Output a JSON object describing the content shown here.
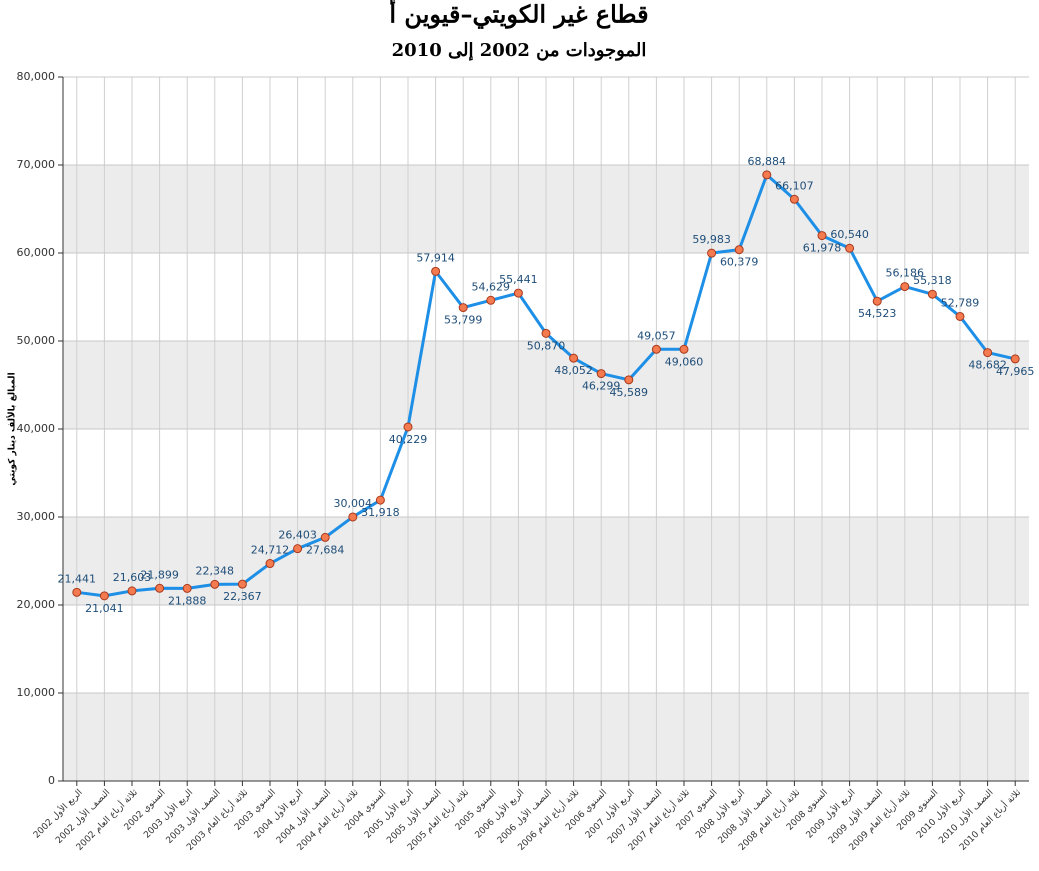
{
  "chart_data": {
    "type": "line",
    "title": "قطاع غير الكويتي–قيوين أ",
    "subtitle": "الموجودات من 2002 إلى 2010",
    "y_label": "المبالغ بالألف دينار كويتي",
    "categories": [
      "الربع الأول 2002",
      "النصف الأول 2002",
      "ثلاثة أرباع العام 2002",
      "السنوي 2002",
      "الربع الأول 2003",
      "النصف الأول 2003",
      "ثلاثة أرباع العام 2003",
      "السنوي 2003",
      "الربع الأول 2004",
      "النصف الأول 2004",
      "ثلاثة أرباع العام 2004",
      "السنوي 2004",
      "الربع الأول 2005",
      "النصف الأول 2005",
      "ثلاثة أرباع العام 2005",
      "السنوي 2005",
      "الربع الأول 2006",
      "النصف الأول 2006",
      "ثلاثة أرباع العام 2006",
      "السنوي 2006",
      "الربع الأول 2007",
      "النصف الأول 2007",
      "ثلاثة أرباع العام 2007",
      "السنوي 2007",
      "الربع الأول 2008",
      "النصف الأول 2008",
      "ثلاثة أرباع العام 2008",
      "السنوي 2008",
      "الربع الأول 2009",
      "النصف الأول 2009",
      "ثلاثة أرباع العام 2009",
      "السنوي 2009",
      "الربع الأول 2010",
      "النصف الأول 2010",
      "ثلاثة أرباع العام 2010"
    ],
    "series": [
      {
        "color": "#1e8fe6",
        "marker_color": "#f47a50",
        "values": [
          21441,
          21041,
          21603,
          21899,
          21888,
          22348,
          22367,
          24712,
          26403,
          27684,
          30004,
          31918,
          40229,
          57914,
          53799,
          54629,
          55441,
          50870,
          48052,
          46299,
          45589,
          49057,
          49060,
          59983,
          60379,
          68884,
          66107,
          61978,
          60540,
          54523,
          56186,
          55318,
          52789,
          48682,
          47965
        ],
        "value_labels": [
          "21,441",
          "21,041",
          "21,603",
          "21,899",
          "21,888",
          "22,348",
          "22,367",
          "24,712",
          "26,403",
          "27,684",
          "30,004",
          "31,918",
          "40,229",
          "57,914",
          "53,799",
          "54,629",
          "55,441",
          "50,870",
          "48,052",
          "46,299",
          "45,589",
          "49,057",
          "49,060",
          "59,983",
          "60,379",
          "68,884",
          "66,107",
          "61,978",
          "60,540",
          "54,523",
          "56,186",
          "55,318",
          "52,789",
          "48,682",
          "47,965"
        ]
      }
    ],
    "ylim": [
      0,
      80000
    ],
    "yticks": [
      {
        "value": 0,
        "label": "0"
      },
      {
        "value": 10000,
        "label": "10,000"
      },
      {
        "value": 20000,
        "label": "20,000"
      },
      {
        "value": 30000,
        "label": "30,000"
      },
      {
        "value": 40000,
        "label": "40,000"
      },
      {
        "value": 50000,
        "label": "50,000"
      },
      {
        "value": 60000,
        "label": "60,000"
      },
      {
        "value": 70000,
        "label": "70,000"
      },
      {
        "value": 80000,
        "label": "80,000"
      }
    ],
    "grid": true,
    "band_color": "#ececec"
  }
}
